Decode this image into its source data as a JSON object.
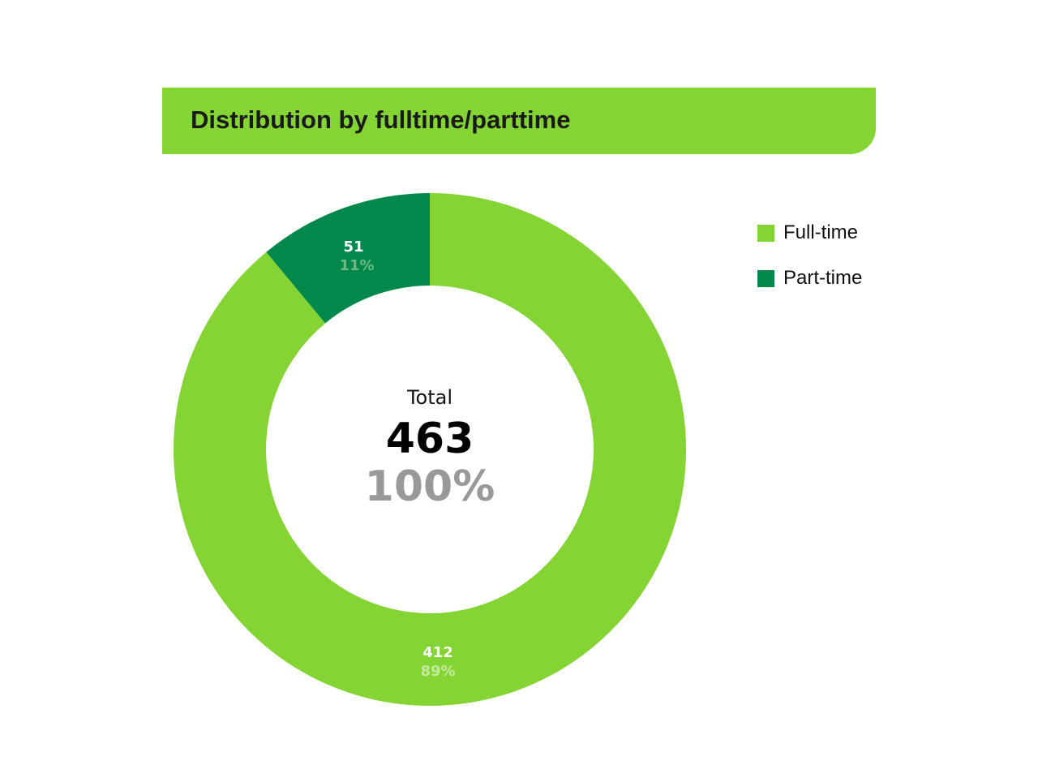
{
  "chart_data": {
    "type": "pie",
    "title": "Distribution by fulltime/parttime",
    "categories": [
      "Full-time",
      "Part-time"
    ],
    "values": [
      412,
      51
    ],
    "percent_labels": [
      "89%",
      "11%"
    ],
    "colors": [
      "#84d433",
      "#00894b"
    ],
    "center": {
      "label": "Total",
      "value": "463",
      "percent": "100%"
    },
    "legend": {
      "placement": "right",
      "entries": [
        "Full-time",
        "Part-time"
      ]
    }
  }
}
